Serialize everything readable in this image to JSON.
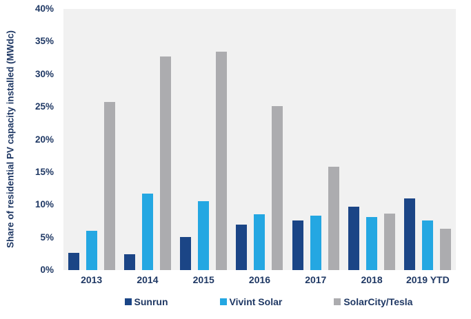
{
  "chart_data": {
    "type": "bar",
    "title": "",
    "xlabel": "",
    "ylabel": "Share of residential PV capacity installed (MWdc)",
    "ylim": [
      0,
      40
    ],
    "grid": false,
    "legend_position": "bottom",
    "plot_background": "#f1f1f1",
    "text_color": "#1f3864",
    "yticks": [
      {
        "value": 0,
        "label": "0%"
      },
      {
        "value": 5,
        "label": "5%"
      },
      {
        "value": 10,
        "label": "10%"
      },
      {
        "value": 15,
        "label": "15%"
      },
      {
        "value": 20,
        "label": "20%"
      },
      {
        "value": 25,
        "label": "25%"
      },
      {
        "value": 30,
        "label": "30%"
      },
      {
        "value": 35,
        "label": "35%"
      },
      {
        "value": 40,
        "label": "40%"
      }
    ],
    "categories": [
      "2013",
      "2014",
      "2015",
      "2016",
      "2017",
      "2018",
      "2019 YTD"
    ],
    "series": [
      {
        "name": "Sunrun",
        "color": "#1b4586",
        "values": [
          2.6,
          2.4,
          5.1,
          7.0,
          7.6,
          9.7,
          11.0
        ]
      },
      {
        "name": "Vivint Solar",
        "color": "#24a7e2",
        "values": [
          6.0,
          11.7,
          10.6,
          8.6,
          8.3,
          8.1,
          7.6
        ]
      },
      {
        "name": "SolarCity/Tesla",
        "color": "#acacaf",
        "values": [
          25.8,
          32.7,
          33.5,
          25.1,
          15.8,
          8.7,
          6.3
        ]
      }
    ]
  }
}
